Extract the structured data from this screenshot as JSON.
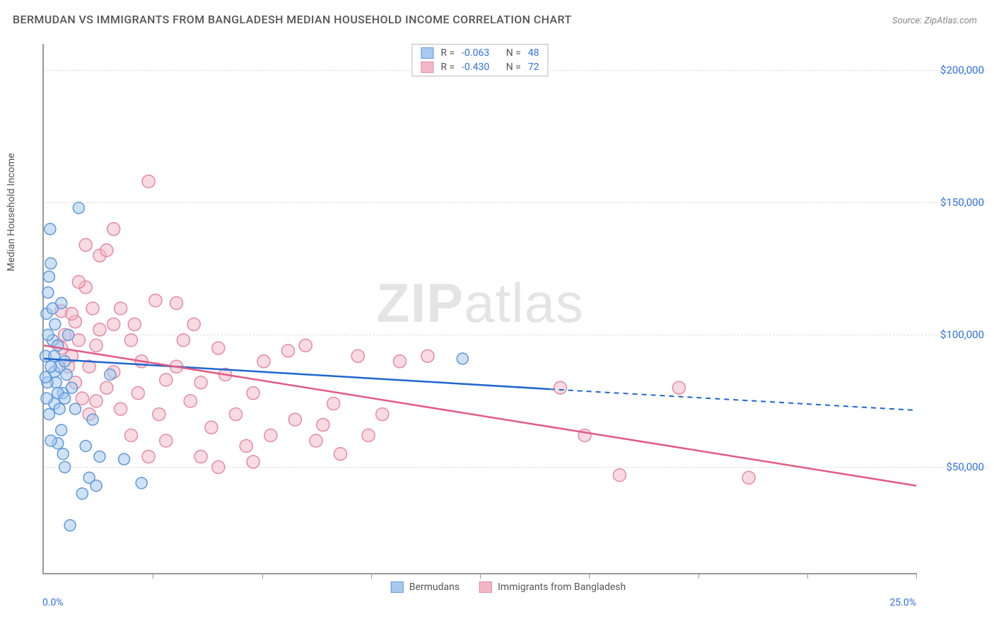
{
  "title": "BERMUDAN VS IMMIGRANTS FROM BANGLADESH MEDIAN HOUSEHOLD INCOME CORRELATION CHART",
  "source": "Source: ZipAtlas.com",
  "ylabel": "Median Household Income",
  "watermark_bold": "ZIP",
  "watermark_light": "atlas",
  "chart": {
    "type": "scatter",
    "x_min": 0.0,
    "x_max": 25.0,
    "x_tick_step_pct": 12.5,
    "x_minor_count": 8,
    "x_start_label": "0.0%",
    "x_end_label": "25.0%",
    "y_min": 10000,
    "y_max": 210000,
    "y_ticks": [
      50000,
      100000,
      150000,
      200000
    ],
    "y_tick_labels": [
      "$50,000",
      "$100,000",
      "$150,000",
      "$200,000"
    ],
    "grid_color": "#dddddd",
    "axis_color": "#999999",
    "background_color": "#ffffff",
    "tick_label_color": "#2f6fe0",
    "series": [
      {
        "name": "Bermudans",
        "fill": "#a8c8ee",
        "stroke": "#5f99d9",
        "line_color": "#1e66d0",
        "R": "-0.063",
        "N": "48",
        "marker_radius": 8,
        "marker_opacity": 0.55,
        "trend": {
          "x1": 0.0,
          "y1": 91000,
          "x2_solid": 14.5,
          "y2_solid": 79500,
          "x2": 25.0,
          "y2": 71500
        },
        "points": [
          [
            0.05,
            92000
          ],
          [
            0.08,
            108000
          ],
          [
            0.12,
            116000
          ],
          [
            0.15,
            122000
          ],
          [
            0.2,
            127000
          ],
          [
            0.15,
            70000
          ],
          [
            0.25,
            98000
          ],
          [
            0.3,
            86000
          ],
          [
            0.32,
            104000
          ],
          [
            0.35,
            82000
          ],
          [
            0.4,
            96000
          ],
          [
            0.45,
            88000
          ],
          [
            0.5,
            112000
          ],
          [
            0.55,
            78000
          ],
          [
            0.6,
            90000
          ],
          [
            0.65,
            85000
          ],
          [
            0.7,
            100000
          ],
          [
            0.4,
            59000
          ],
          [
            0.3,
            74000
          ],
          [
            0.2,
            60000
          ],
          [
            0.5,
            64000
          ],
          [
            0.55,
            55000
          ],
          [
            0.18,
            140000
          ],
          [
            1.0,
            148000
          ],
          [
            0.8,
            80000
          ],
          [
            0.9,
            72000
          ],
          [
            1.1,
            40000
          ],
          [
            1.2,
            58000
          ],
          [
            1.3,
            46000
          ],
          [
            1.5,
            43000
          ],
          [
            0.75,
            28000
          ],
          [
            1.4,
            68000
          ],
          [
            1.6,
            54000
          ],
          [
            0.6,
            50000
          ],
          [
            0.1,
            82000
          ],
          [
            0.2,
            88000
          ],
          [
            0.3,
            92000
          ],
          [
            0.4,
            78000
          ],
          [
            0.45,
            72000
          ],
          [
            0.12,
            100000
          ],
          [
            0.25,
            110000
          ],
          [
            0.05,
            84000
          ],
          [
            0.08,
            76000
          ],
          [
            0.6,
            76000
          ],
          [
            1.9,
            85000
          ],
          [
            2.3,
            53000
          ],
          [
            2.8,
            44000
          ],
          [
            12.0,
            91000
          ]
        ]
      },
      {
        "name": "Immigrants from Bangladesh",
        "fill": "#f2b7c6",
        "stroke": "#e58aa3",
        "line_color": "#e35a84",
        "R": "-0.430",
        "N": "72",
        "marker_radius": 9,
        "marker_opacity": 0.5,
        "trend": {
          "x1": 0.0,
          "y1": 96000,
          "x2_solid": 25.0,
          "y2_solid": 43000,
          "x2": 25.0,
          "y2": 43000
        },
        "points": [
          [
            0.5,
            95000
          ],
          [
            0.6,
            100000
          ],
          [
            0.8,
            92000
          ],
          [
            1.0,
            98000
          ],
          [
            0.9,
            105000
          ],
          [
            1.2,
            118000
          ],
          [
            1.3,
            88000
          ],
          [
            1.4,
            110000
          ],
          [
            1.5,
            96000
          ],
          [
            1.6,
            130000
          ],
          [
            1.8,
            132000
          ],
          [
            2.0,
            104000
          ],
          [
            2.2,
            110000
          ],
          [
            2.5,
            98000
          ],
          [
            2.8,
            90000
          ],
          [
            3.0,
            158000
          ],
          [
            3.2,
            113000
          ],
          [
            3.5,
            83000
          ],
          [
            3.8,
            88000
          ],
          [
            4.0,
            98000
          ],
          [
            2.2,
            72000
          ],
          [
            2.5,
            62000
          ],
          [
            2.7,
            78000
          ],
          [
            3.0,
            54000
          ],
          [
            3.3,
            70000
          ],
          [
            3.5,
            60000
          ],
          [
            4.2,
            75000
          ],
          [
            4.5,
            82000
          ],
          [
            4.8,
            65000
          ],
          [
            5.0,
            95000
          ],
          [
            5.2,
            85000
          ],
          [
            5.5,
            70000
          ],
          [
            5.8,
            58000
          ],
          [
            6.0,
            78000
          ],
          [
            6.3,
            90000
          ],
          [
            6.5,
            62000
          ],
          [
            7.0,
            94000
          ],
          [
            7.2,
            68000
          ],
          [
            7.5,
            96000
          ],
          [
            7.8,
            60000
          ],
          [
            8.0,
            66000
          ],
          [
            8.3,
            74000
          ],
          [
            8.5,
            55000
          ],
          [
            9.0,
            92000
          ],
          [
            9.3,
            62000
          ],
          [
            9.7,
            70000
          ],
          [
            10.2,
            90000
          ],
          [
            11.0,
            92000
          ],
          [
            1.0,
            120000
          ],
          [
            1.5,
            75000
          ],
          [
            1.8,
            80000
          ],
          [
            2.0,
            86000
          ],
          [
            0.7,
            88000
          ],
          [
            0.9,
            82000
          ],
          [
            1.1,
            76000
          ],
          [
            1.3,
            70000
          ],
          [
            0.5,
            109000
          ],
          [
            4.5,
            54000
          ],
          [
            5.0,
            50000
          ],
          [
            6.0,
            52000
          ],
          [
            14.8,
            80000
          ],
          [
            15.5,
            62000
          ],
          [
            16.5,
            47000
          ],
          [
            18.2,
            80000
          ],
          [
            20.2,
            46000
          ],
          [
            3.8,
            112000
          ],
          [
            4.3,
            104000
          ],
          [
            2.6,
            104000
          ],
          [
            2.0,
            140000
          ],
          [
            1.2,
            134000
          ],
          [
            0.8,
            108000
          ],
          [
            1.6,
            102000
          ]
        ]
      }
    ]
  },
  "legend_labels": {
    "R": "R =",
    "N": "N ="
  }
}
